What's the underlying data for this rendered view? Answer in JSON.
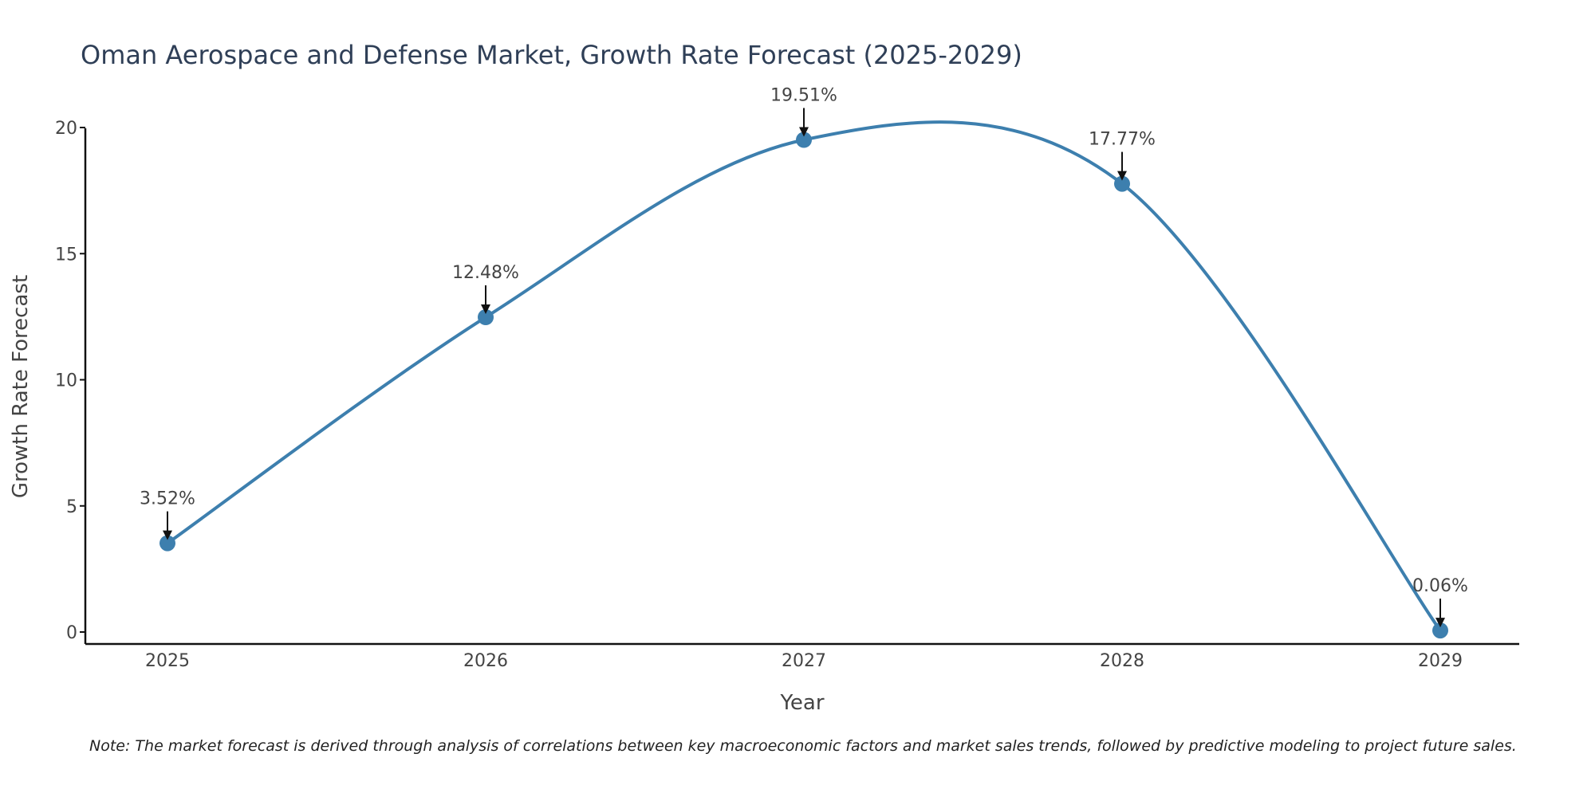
{
  "chart_data": {
    "type": "line",
    "title": "Oman Aerospace and Defense Market, Growth Rate Forecast (2025-2029)",
    "xlabel": "Year",
    "ylabel": "Growth Rate Forecast",
    "categories": [
      "2025",
      "2026",
      "2027",
      "2028",
      "2029"
    ],
    "series": [
      {
        "name": "Growth Rate Forecast",
        "values": [
          3.52,
          12.48,
          19.51,
          17.77,
          0.06
        ],
        "labels": [
          "3.52%",
          "12.48%",
          "19.51%",
          "17.77%",
          "0.06%"
        ],
        "color": "#3d7fae"
      }
    ],
    "ylim": [
      0,
      20
    ],
    "yticks": [
      0,
      5,
      10,
      15,
      20
    ],
    "grid": false,
    "line_shape": "spline",
    "note": "Note: The market forecast is derived through analysis of correlations between key macroeconomic factors and market sales trends, followed by predictive modeling to project future sales."
  }
}
